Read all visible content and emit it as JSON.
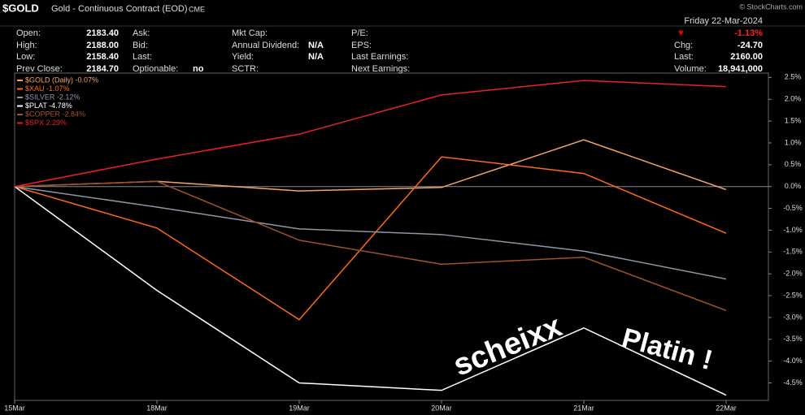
{
  "header": {
    "symbol": "$GOLD",
    "description": "Gold - Continuous Contract (EOD)",
    "exchange": "CME",
    "copyright": "© StockCharts.com"
  },
  "quote": {
    "date": "Friday  22-Mar-2024",
    "change_pct": {
      "arrow": "▼",
      "value": "-1.13%"
    },
    "columns": [
      [
        {
          "label": "Open:",
          "value": "2183.40"
        },
        {
          "label": "High:",
          "value": "2188.00"
        },
        {
          "label": "Low:",
          "value": "2158.40"
        },
        {
          "label": "Prev Close:",
          "value": "2184.70"
        }
      ],
      [
        {
          "label": "Ask:"
        },
        {
          "label": "Bid:"
        },
        {
          "label": "Last:"
        },
        {
          "label": "Optionable:",
          "value": "no"
        }
      ],
      [
        {
          "label": "Mkt Cap:"
        },
        {
          "label": "Annual Dividend:",
          "value": "N/A"
        },
        {
          "label": "Yield:",
          "value": "N/A"
        },
        {
          "label": "SCTR:"
        }
      ],
      [
        {
          "label": "P/E:"
        },
        {
          "label": "EPS:"
        },
        {
          "label": "Last Earnings:"
        },
        {
          "label": "Next Earnings:"
        }
      ],
      [
        {
          "label": "Chg:",
          "value": "-24.70"
        },
        {
          "label": "Last:",
          "value": "2160.00"
        },
        {
          "label": "Volume:",
          "value": "18,941,000"
        }
      ]
    ]
  },
  "chart_data": {
    "type": "line",
    "categories": [
      "15Mar",
      "18Mar",
      "19Mar",
      "20Mar",
      "21Mar",
      "22Mar"
    ],
    "series": [
      {
        "name": "$GOLD (Daily) -0.07%",
        "color": "#f4a46a",
        "values": [
          0,
          0.12,
          -0.1,
          -0.02,
          1.07,
          -0.07
        ]
      },
      {
        "name": "$XAU -1.07%",
        "color": "#ff6a1a",
        "values": [
          0,
          -0.95,
          -3.05,
          0.68,
          0.3,
          -1.07
        ]
      },
      {
        "name": "$SILVER -2.12%",
        "color": "#8a97a6",
        "values": [
          0,
          -0.47,
          -0.97,
          -1.1,
          -1.48,
          -2.12
        ]
      },
      {
        "name": "$PLAT -4.78%",
        "color": "#ffffff",
        "values": [
          0,
          -2.38,
          -4.5,
          -4.67,
          -3.24,
          -4.78
        ]
      },
      {
        "name": "$COPPER -2.84%",
        "color": "#a0522d",
        "values": [
          0,
          0.12,
          -1.23,
          -1.78,
          -1.62,
          -2.84
        ]
      },
      {
        "name": "$SPX 2.29%",
        "color": "#e8202a",
        "values": [
          0,
          0.63,
          1.2,
          2.1,
          2.43,
          2.29
        ]
      }
    ],
    "ylim": [
      -4.9,
      2.6
    ],
    "yticks": [
      {
        "value": 2.5,
        "label": "2.5%"
      },
      {
        "value": 2,
        "label": "2.0%"
      },
      {
        "value": 1.5,
        "label": "1.5%"
      },
      {
        "value": 1,
        "label": "1.0%"
      },
      {
        "value": 0.5,
        "label": "0.5%"
      },
      {
        "value": 0,
        "label": "0.0%"
      },
      {
        "value": -0.5,
        "label": "-0.5%"
      },
      {
        "value": -1,
        "label": "-1.0%"
      },
      {
        "value": -1.5,
        "label": "-1.5%"
      },
      {
        "value": -2,
        "label": "-2.0%"
      },
      {
        "value": -2.5,
        "label": "-2.5%"
      },
      {
        "value": -3,
        "label": "-3.0%"
      },
      {
        "value": -3.5,
        "label": "-3.5%"
      },
      {
        "value": -4,
        "label": "-4.0%"
      },
      {
        "value": -4.5,
        "label": "-4.5%"
      }
    ],
    "grid": false,
    "legend": "top-left",
    "annotations": [
      "scheixx",
      "Platin !"
    ]
  }
}
